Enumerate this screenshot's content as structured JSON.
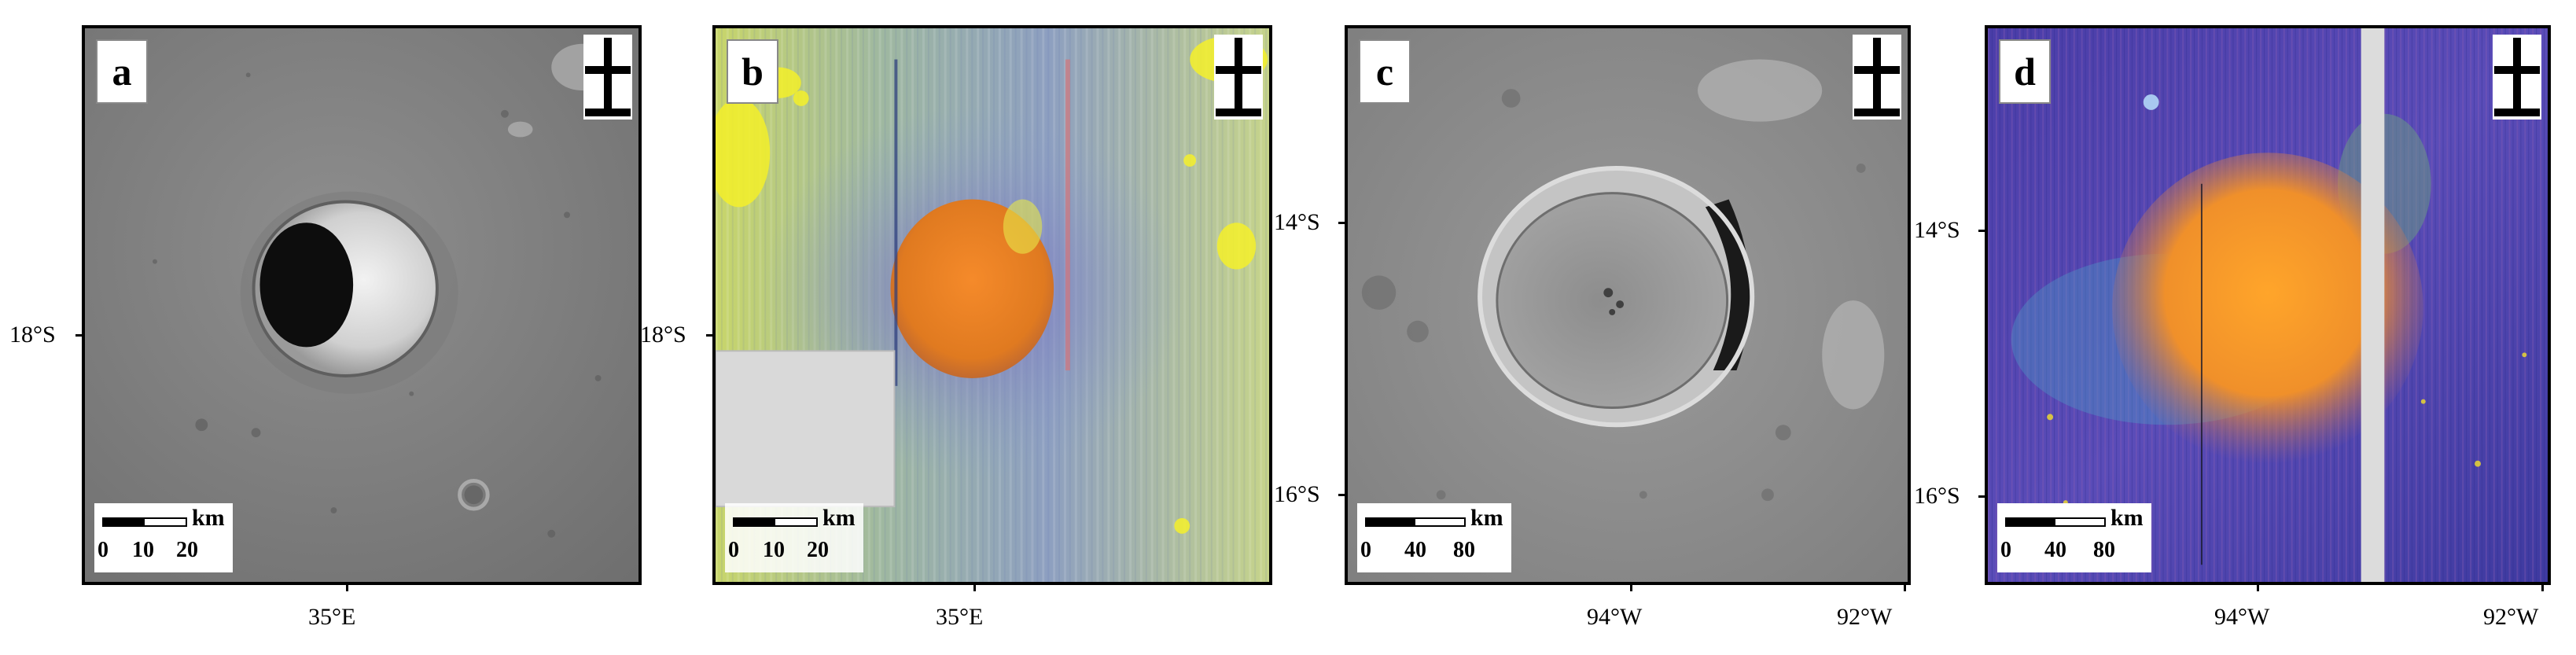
{
  "panels": [
    {
      "label": "a",
      "type": "grayscale image",
      "x_ticks": [
        "35°E"
      ],
      "y_ticks": [
        "18°S"
      ],
      "scale": {
        "ticks": [
          "0",
          "10",
          "20"
        ],
        "unit": "km"
      }
    },
    {
      "label": "b",
      "type": "false-color image",
      "x_ticks": [
        "35°E"
      ],
      "y_ticks": [
        "18°S"
      ],
      "scale": {
        "ticks": [
          "0",
          "10",
          "20"
        ],
        "unit": "km"
      }
    },
    {
      "label": "c",
      "type": "grayscale image",
      "x_ticks": [
        "94°W",
        "92°W"
      ],
      "y_ticks": [
        "14°S",
        "16°S"
      ],
      "scale": {
        "ticks": [
          "0",
          "40",
          "80"
        ],
        "unit": "km"
      }
    },
    {
      "label": "d",
      "type": "false-color image",
      "x_ticks": [
        "94°W",
        "92°W"
      ],
      "y_ticks": [
        "14°S",
        "16°S"
      ],
      "scale": {
        "ticks": [
          "0",
          "40",
          "80"
        ],
        "unit": "km"
      }
    }
  ],
  "colors": {
    "frame": "#000000",
    "background": "#ffffff",
    "label_box": "#ffffff"
  }
}
